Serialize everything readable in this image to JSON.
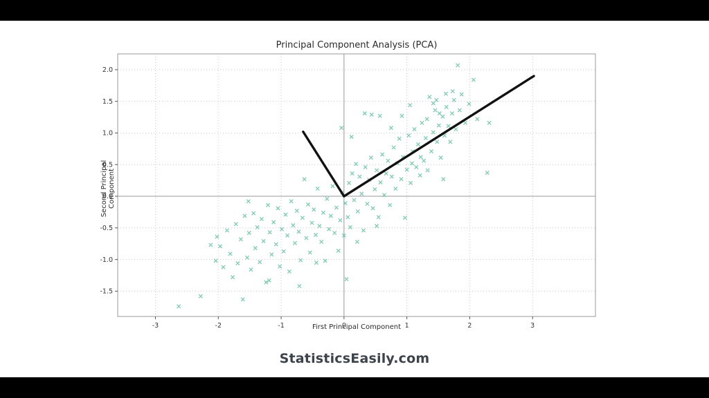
{
  "frame": {
    "background": "#ffffff",
    "letterbox_color": "#000000"
  },
  "watermark": "StatisticsEasily.com",
  "chart_data": {
    "type": "scatter",
    "title": "Principal Component Analysis (PCA)",
    "xlabel": "First Principal Component",
    "ylabel": "Second Principal Component",
    "xlim": [
      -3.6,
      4.0
    ],
    "ylim": [
      -1.9,
      2.25
    ],
    "x_ticks": [
      -3,
      -2,
      -1,
      0,
      1,
      2,
      3
    ],
    "x_tick_labels": [
      "-3",
      "-2",
      "-1",
      "0",
      "1",
      "2",
      "3"
    ],
    "y_ticks": [
      -1.5,
      -1.0,
      -0.5,
      0.0,
      0.5,
      1.0,
      1.5,
      2.0
    ],
    "y_tick_labels": [
      "-1.5",
      "-1.0",
      "-0.5",
      "0.0",
      "0.5",
      "1.0",
      "1.5",
      "2.0"
    ],
    "grid": "dotted",
    "zero_lines": true,
    "legend": "none",
    "marker": "x",
    "marker_color": "#69c0a5",
    "vector_color": "#111111",
    "zero_line_color": "#9a9a9a",
    "grid_color": "#c9c9c9",
    "spine_color": "#999999",
    "vectors": [
      {
        "name": "pc1-vector",
        "from": [
          0,
          0
        ],
        "to": [
          3.02,
          1.9
        ]
      },
      {
        "name": "pc2-vector",
        "from": [
          0,
          0
        ],
        "to": [
          -0.65,
          1.02
        ]
      }
    ],
    "points": [
      [
        -2.63,
        -1.74
      ],
      [
        -2.28,
        -1.58
      ],
      [
        -2.12,
        -0.77
      ],
      [
        -2.04,
        -1.02
      ],
      [
        -1.97,
        -0.79
      ],
      [
        -1.92,
        -1.12
      ],
      [
        -1.86,
        -0.54
      ],
      [
        -1.81,
        -0.91
      ],
      [
        -1.77,
        -1.28
      ],
      [
        -1.72,
        -0.44
      ],
      [
        -1.69,
        -1.06
      ],
      [
        -1.64,
        -0.68
      ],
      [
        -1.61,
        -1.63
      ],
      [
        -1.58,
        -0.31
      ],
      [
        -1.54,
        -0.97
      ],
      [
        -1.51,
        -0.58
      ],
      [
        -1.48,
        -1.16
      ],
      [
        -1.44,
        -0.27
      ],
      [
        -1.41,
        -0.82
      ],
      [
        -1.38,
        -0.49
      ],
      [
        -1.34,
        -1.04
      ],
      [
        -1.31,
        -0.36
      ],
      [
        -1.28,
        -0.71
      ],
      [
        -1.24,
        -1.36
      ],
      [
        -1.21,
        -0.14
      ],
      [
        -1.18,
        -0.57
      ],
      [
        -1.15,
        -0.92
      ],
      [
        -1.12,
        -0.41
      ],
      [
        -1.08,
        -0.76
      ],
      [
        -1.05,
        -0.19
      ],
      [
        -1.02,
        -1.11
      ],
      [
        -0.99,
        -0.52
      ],
      [
        -0.96,
        -0.87
      ],
      [
        -0.93,
        -0.29
      ],
      [
        -0.9,
        -0.62
      ],
      [
        -0.87,
        -1.19
      ],
      [
        -0.84,
        -0.08
      ],
      [
        -0.81,
        -0.46
      ],
      [
        -0.78,
        -0.74
      ],
      [
        -0.75,
        -0.23
      ],
      [
        -0.72,
        -0.56
      ],
      [
        -0.69,
        -1.01
      ],
      [
        -0.66,
        -0.34
      ],
      [
        -0.63,
        0.27
      ],
      [
        -0.6,
        -0.66
      ],
      [
        -0.57,
        -0.13
      ],
      [
        -0.54,
        -0.89
      ],
      [
        -0.51,
        -0.42
      ],
      [
        -0.48,
        -0.21
      ],
      [
        -0.45,
        -0.61
      ],
      [
        -0.42,
        0.12
      ],
      [
        -0.39,
        -0.47
      ],
      [
        -0.36,
        -0.72
      ],
      [
        -0.33,
        -0.26
      ],
      [
        -0.3,
        -1.02
      ],
      [
        -0.27,
        -0.04
      ],
      [
        -0.24,
        -0.52
      ],
      [
        -0.21,
        -0.31
      ],
      [
        -0.18,
        0.16
      ],
      [
        -0.15,
        -0.58
      ],
      [
        -0.12,
        -0.18
      ],
      [
        -0.09,
        -0.86
      ],
      [
        -0.06,
        -0.38
      ],
      [
        -0.03,
        0.06
      ],
      [
        0.0,
        -0.62
      ],
      [
        0.02,
        -0.11
      ],
      [
        0.04,
        -1.31
      ],
      [
        0.06,
        -0.33
      ],
      [
        0.08,
        0.21
      ],
      [
        0.1,
        -0.49
      ],
      [
        0.13,
        0.36
      ],
      [
        0.16,
        -0.06
      ],
      [
        0.19,
        0.51
      ],
      [
        0.22,
        -0.24
      ],
      [
        0.25,
        0.31
      ],
      [
        0.28,
        0.04
      ],
      [
        0.31,
        -0.54
      ],
      [
        0.34,
        0.46
      ],
      [
        0.37,
        -0.12
      ],
      [
        0.4,
        0.26
      ],
      [
        0.43,
        0.61
      ],
      [
        0.46,
        -0.19
      ],
      [
        0.49,
        0.11
      ],
      [
        0.52,
        0.41
      ],
      [
        0.55,
        -0.33
      ],
      [
        0.58,
        0.22
      ],
      [
        0.61,
        0.66
      ],
      [
        0.64,
        0.02
      ],
      [
        0.67,
        0.36
      ],
      [
        0.7,
        0.56
      ],
      [
        0.73,
        -0.14
      ],
      [
        0.76,
        0.31
      ],
      [
        0.79,
        0.77
      ],
      [
        0.82,
        0.12
      ],
      [
        0.85,
        0.52
      ],
      [
        0.88,
        0.91
      ],
      [
        0.91,
        0.27
      ],
      [
        0.94,
        0.62
      ],
      [
        0.97,
        -0.34
      ],
      [
        1.0,
        0.42
      ],
      [
        1.03,
        0.96
      ],
      [
        1.06,
        0.21
      ],
      [
        1.09,
        0.71
      ],
      [
        1.12,
        1.06
      ],
      [
        1.15,
        0.46
      ],
      [
        1.18,
        0.82
      ],
      [
        1.21,
        0.33
      ],
      [
        1.24,
        1.16
      ],
      [
        1.27,
        0.56
      ],
      [
        1.3,
        0.92
      ],
      [
        1.33,
        0.41
      ],
      [
        1.36,
        1.57
      ],
      [
        1.39,
        0.71
      ],
      [
        1.42,
        1.01
      ],
      [
        1.45,
        1.36
      ],
      [
        1.48,
        0.86
      ],
      [
        1.51,
        1.12
      ],
      [
        1.54,
        0.61
      ],
      [
        1.57,
        1.26
      ],
      [
        1.6,
        0.96
      ],
      [
        1.63,
        1.41
      ],
      [
        1.66,
        1.11
      ],
      [
        1.69,
        0.86
      ],
      [
        1.72,
        1.31
      ],
      [
        1.75,
        1.52
      ],
      [
        1.78,
        1.06
      ],
      [
        1.81,
        2.07
      ],
      [
        1.84,
        1.36
      ],
      [
        1.87,
        1.61
      ],
      [
        1.93,
        1.16
      ],
      [
        1.99,
        1.46
      ],
      [
        2.06,
        1.84
      ],
      [
        2.12,
        1.22
      ],
      [
        2.31,
        1.16
      ],
      [
        0.44,
        1.29
      ],
      [
        0.57,
        1.27
      ],
      [
        -0.04,
        1.08
      ],
      [
        0.12,
        0.94
      ],
      [
        0.33,
        1.31
      ],
      [
        2.28,
        0.37
      ],
      [
        1.58,
        0.27
      ],
      [
        -0.71,
        -1.42
      ],
      [
        -1.19,
        -1.33
      ],
      [
        -0.44,
        -1.05
      ],
      [
        0.21,
        -0.72
      ],
      [
        0.52,
        -0.47
      ],
      [
        -2.02,
        -0.64
      ],
      [
        -1.52,
        -0.08
      ],
      [
        0.92,
        1.27
      ],
      [
        1.05,
        1.44
      ],
      [
        0.75,
        1.08
      ],
      [
        1.32,
        1.22
      ],
      [
        1.47,
        1.52
      ],
      [
        1.08,
        0.52
      ],
      [
        1.22,
        0.62
      ],
      [
        1.62,
        1.62
      ],
      [
        1.73,
        1.66
      ],
      [
        1.52,
        1.31
      ],
      [
        1.42,
        1.47
      ]
    ]
  }
}
